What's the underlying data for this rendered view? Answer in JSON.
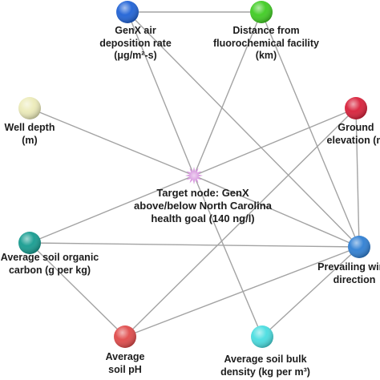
{
  "nodes": [
    {
      "id": "genx_air",
      "color": "#1f62d6",
      "lines": [
        "GenX air",
        "deposition rate",
        "(μg/m²-s)"
      ]
    },
    {
      "id": "distance",
      "color": "#3fcc22",
      "lines": [
        "Distance from",
        "fluorochemical facility",
        "(km)"
      ]
    },
    {
      "id": "well_depth",
      "color": "#ecebb9",
      "lines": [
        "Well depth",
        "(m)"
      ]
    },
    {
      "id": "ground_elev",
      "color": "#d8203a",
      "lines": [
        "Ground",
        "elevation (m"
      ]
    },
    {
      "id": "target",
      "color": "#d99be0",
      "lines": [
        "Target node: GenX",
        "above/below North Carolina",
        "health goal (140 ng/l)"
      ]
    },
    {
      "id": "soil_organic",
      "color": "#169c90",
      "lines": [
        "Average soil organic",
        "carbon (g per kg)"
      ]
    },
    {
      "id": "wind",
      "color": "#2f7fd3",
      "lines": [
        "Prevailing wind",
        "direction"
      ]
    },
    {
      "id": "soil_ph",
      "color": "#e04a4a",
      "lines": [
        "Average",
        "soil pH"
      ]
    },
    {
      "id": "bulk_density",
      "color": "#49dde0",
      "lines": [
        "Average soil bulk",
        "density (kg per m³)"
      ]
    }
  ],
  "edges": [
    [
      "genx_air",
      "distance"
    ],
    [
      "genx_air",
      "target"
    ],
    [
      "genx_air",
      "wind"
    ],
    [
      "distance",
      "target"
    ],
    [
      "distance",
      "wind"
    ],
    [
      "well_depth",
      "target"
    ],
    [
      "ground_elev",
      "target"
    ],
    [
      "ground_elev",
      "wind"
    ],
    [
      "ground_elev",
      "soil_ph"
    ],
    [
      "target",
      "soil_organic"
    ],
    [
      "target",
      "wind"
    ],
    [
      "target",
      "bulk_density"
    ],
    [
      "soil_organic",
      "wind"
    ],
    [
      "soil_organic",
      "soil_ph"
    ],
    [
      "wind",
      "soil_ph"
    ],
    [
      "wind",
      "bulk_density"
    ]
  ]
}
